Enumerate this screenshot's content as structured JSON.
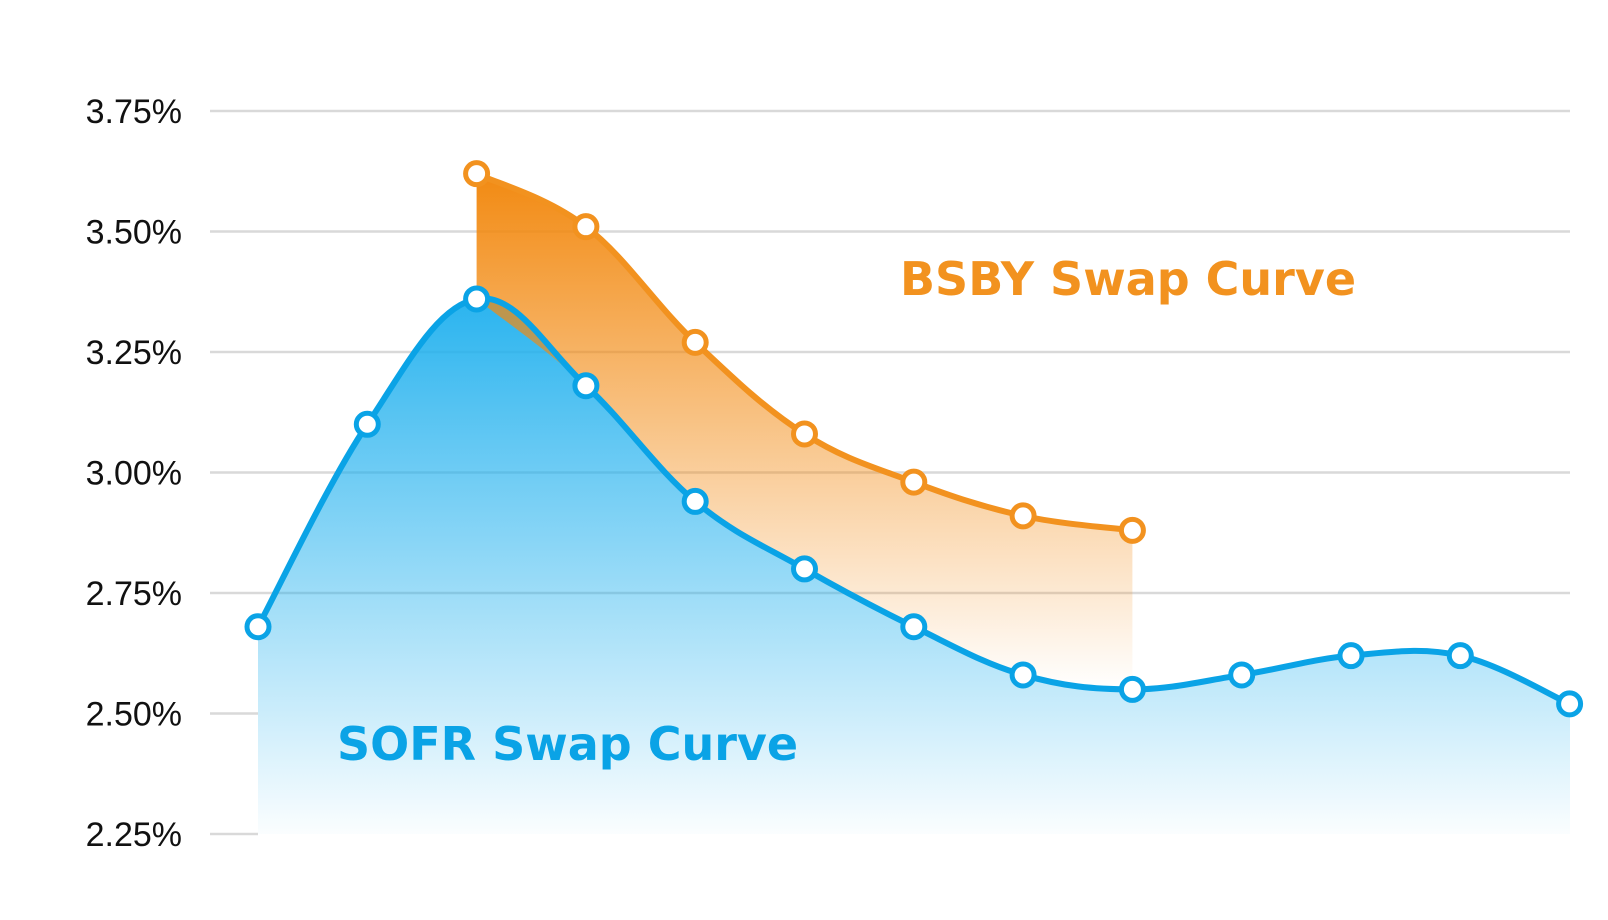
{
  "chart_data": {
    "type": "area",
    "title": "",
    "xlabel": "",
    "ylabel": "",
    "ylim": [
      2.25,
      3.75
    ],
    "y_ticks": [
      {
        "value": 3.75,
        "label": "3.75%"
      },
      {
        "value": 3.5,
        "label": "3.50%"
      },
      {
        "value": 3.25,
        "label": "3.25%"
      },
      {
        "value": 3.0,
        "label": "3.00%"
      },
      {
        "value": 2.75,
        "label": "2.75%"
      },
      {
        "value": 2.5,
        "label": "2.50%"
      },
      {
        "value": 2.25,
        "label": "2.25%"
      }
    ],
    "grid": true,
    "x": [
      1,
      2,
      3,
      4,
      5,
      6,
      7,
      8,
      9,
      10,
      11,
      12,
      13
    ],
    "series": [
      {
        "name": "SOFR Swap Curve",
        "color": "#0aa3e6",
        "values": [
          2.68,
          3.1,
          3.36,
          3.18,
          2.94,
          2.8,
          2.68,
          2.58,
          2.55,
          2.58,
          2.62,
          2.62,
          2.52
        ]
      },
      {
        "name": "BSBY Swap Curve",
        "color": "#f2921f",
        "values": [
          null,
          null,
          3.62,
          3.51,
          3.27,
          3.08,
          2.98,
          2.91,
          2.88,
          null,
          null,
          null,
          null
        ]
      }
    ],
    "labels": {
      "sofr": "SOFR Swap Curve",
      "bsby": "BSBY Swap Curve"
    }
  }
}
